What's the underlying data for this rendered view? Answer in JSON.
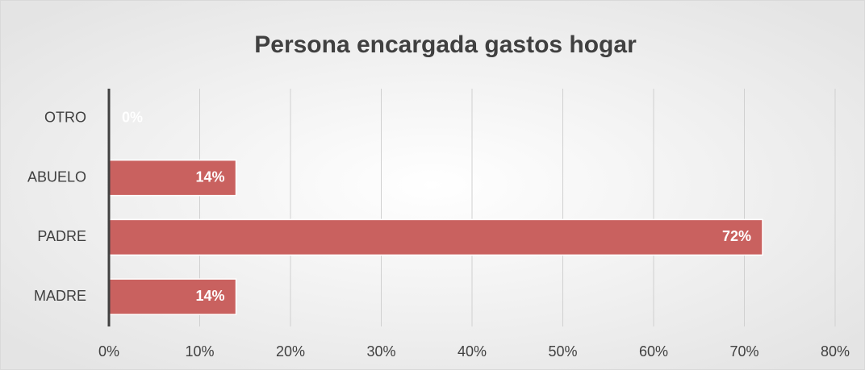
{
  "chart_data": {
    "type": "hbar",
    "title": "Persona encargada gastos hogar",
    "categories": [
      "OTRO",
      "ABUELO",
      "PADRE",
      "MADRE"
    ],
    "values": [
      0,
      14,
      72,
      14
    ],
    "value_labels": [
      "0%",
      "14%",
      "72%",
      "14%"
    ],
    "color": "#c9615f",
    "xlim": [
      0,
      80
    ],
    "xticks": [
      {
        "value": 0,
        "label": "0%"
      },
      {
        "value": 10,
        "label": "10%"
      },
      {
        "value": 20,
        "label": "20%"
      },
      {
        "value": 30,
        "label": "30%"
      },
      {
        "value": 40,
        "label": "40%"
      },
      {
        "value": 50,
        "label": "50%"
      },
      {
        "value": 60,
        "label": "60%"
      },
      {
        "value": 70,
        "label": "70%"
      },
      {
        "value": 80,
        "label": "80%"
      }
    ],
    "grid": true
  }
}
